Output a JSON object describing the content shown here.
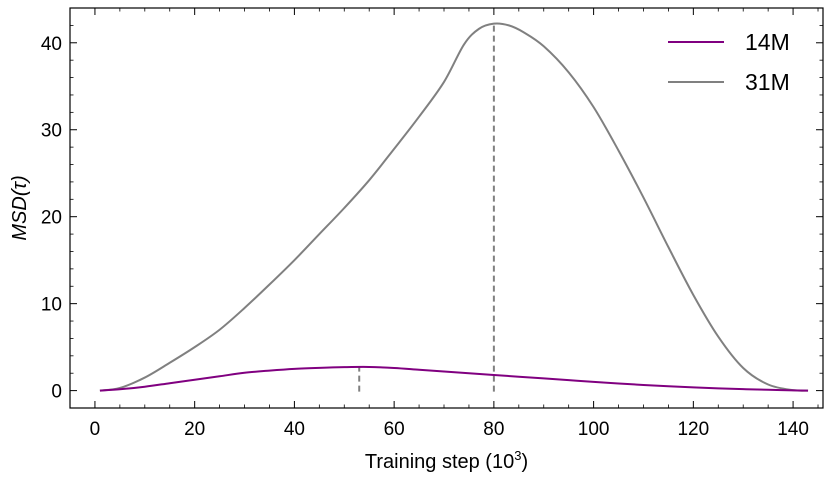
{
  "chart_data": {
    "type": "line",
    "xlabel": "Training step (10",
    "xlabel_sup": "3",
    "xlabel_close": ")",
    "ylabel": "MSD(τ)",
    "xlim": [
      -5,
      146
    ],
    "ylim": [
      -2,
      44
    ],
    "xticks": [
      0,
      20,
      40,
      60,
      80,
      100,
      120,
      140
    ],
    "yticks": [
      0,
      10,
      20,
      30,
      40
    ],
    "legend_position": "top-right",
    "grid": false,
    "series": [
      {
        "name": "14M",
        "color": "#800080",
        "peak_x": 53,
        "peak_y": 2.7,
        "x": [
          1,
          5,
          10,
          15,
          20,
          25,
          30,
          35,
          40,
          45,
          50,
          55,
          60,
          65,
          70,
          75,
          80,
          85,
          90,
          95,
          100,
          105,
          110,
          115,
          120,
          125,
          130,
          135,
          140,
          143
        ],
        "y": [
          0,
          0.15,
          0.45,
          0.85,
          1.25,
          1.65,
          2.05,
          2.3,
          2.5,
          2.62,
          2.7,
          2.72,
          2.6,
          2.4,
          2.2,
          2.0,
          1.8,
          1.6,
          1.4,
          1.2,
          1.0,
          0.82,
          0.65,
          0.5,
          0.37,
          0.26,
          0.17,
          0.1,
          0.03,
          0
        ]
      },
      {
        "name": "31M",
        "color": "#808080",
        "peak_x": 80,
        "peak_y": 42.2,
        "x": [
          1,
          5,
          10,
          15,
          20,
          25,
          30,
          35,
          40,
          45,
          50,
          55,
          60,
          65,
          70,
          74,
          77,
          80,
          83,
          86,
          90,
          95,
          100,
          105,
          110,
          115,
          120,
          125,
          130,
          135,
          140,
          143
        ],
        "y": [
          0,
          0.3,
          1.5,
          3.2,
          5.0,
          7.0,
          9.5,
          12.2,
          15.0,
          18.0,
          21.0,
          24.2,
          27.8,
          31.5,
          35.5,
          39.8,
          41.6,
          42.2,
          42.0,
          41.2,
          39.6,
          36.6,
          32.6,
          27.6,
          22.2,
          16.5,
          11.0,
          6.2,
          2.6,
          0.7,
          0.05,
          0
        ]
      }
    ]
  }
}
